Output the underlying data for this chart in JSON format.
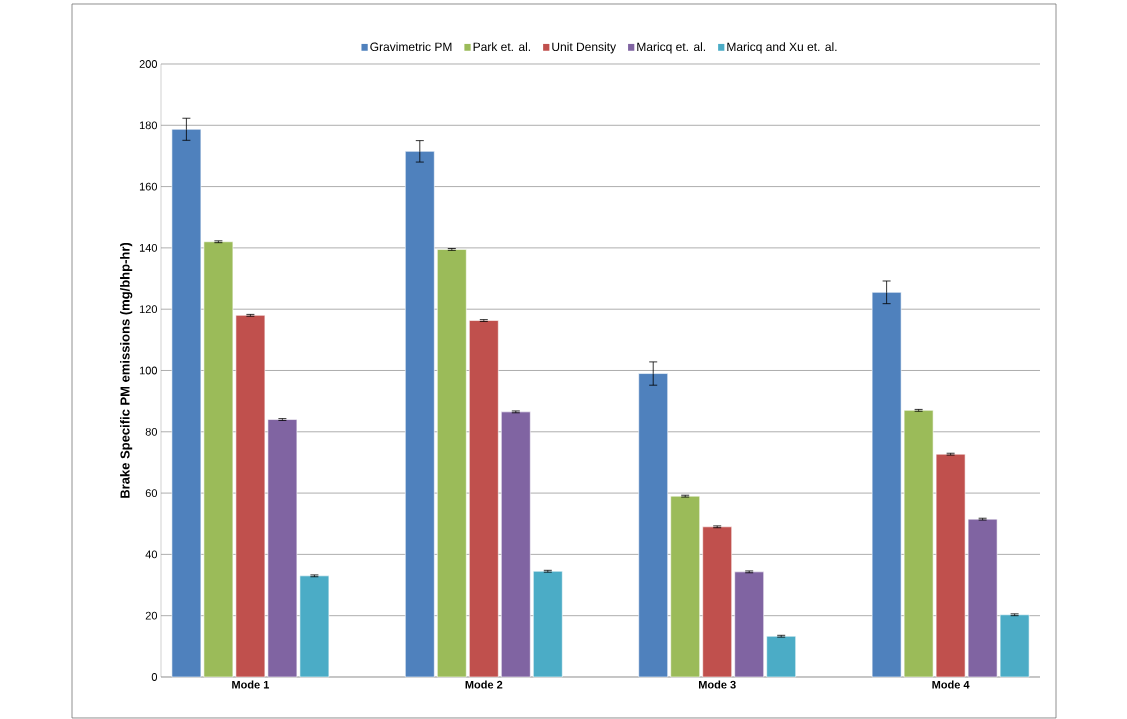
{
  "chart_data": {
    "type": "bar",
    "ylabel": "Brake Specific PM emissions (mg/bhp-hr)",
    "categories": [
      "Mode 1",
      "Mode 2",
      "Mode 3",
      "Mode 4"
    ],
    "series": [
      {
        "name": "Gravimetric PM",
        "color": "#4f81bd",
        "values": [
          178.7,
          171.5,
          99,
          125.5
        ],
        "errors": [
          3.6,
          3.5,
          3.8,
          3.7
        ]
      },
      {
        "name": "Park et. al.",
        "color": "#9bbb59",
        "values": [
          142,
          139.5,
          59,
          87
        ],
        "errors": [
          0.3,
          0.3,
          0.3,
          0.3
        ]
      },
      {
        "name": "Unit Density",
        "color": "#c0504d",
        "values": [
          118,
          116.3,
          49,
          72.7
        ],
        "errors": [
          0.3,
          0.3,
          0.3,
          0.3
        ]
      },
      {
        "name": "Maricq et. al.",
        "color": "#8064a2",
        "values": [
          84,
          86.5,
          34.3,
          51.5
        ],
        "errors": [
          0.3,
          0.3,
          0.3,
          0.3
        ]
      },
      {
        "name": "Maricq and Xu et. al.",
        "color": "#4bacc6",
        "values": [
          33,
          34.5,
          13.3,
          20.3
        ],
        "errors": [
          0.3,
          0.3,
          0.3,
          0.3
        ]
      }
    ],
    "ylim": [
      0,
      200
    ],
    "yticks": [
      0,
      20,
      40,
      60,
      80,
      100,
      120,
      140,
      160,
      180,
      200
    ],
    "grid": "y",
    "legend": "top"
  }
}
